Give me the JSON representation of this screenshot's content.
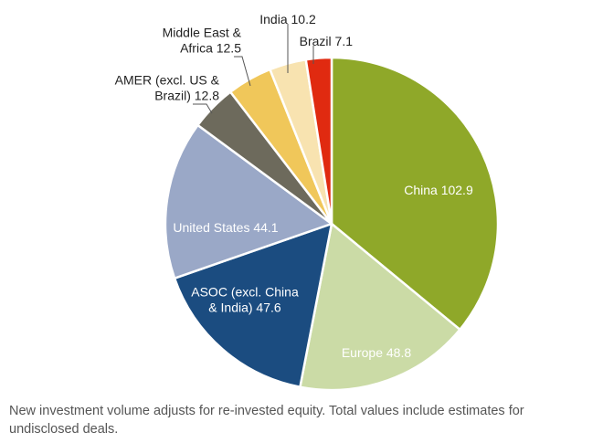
{
  "chart_data": {
    "type": "pie",
    "title": "",
    "units": "",
    "slices": [
      {
        "label": "China",
        "value": 102.9,
        "color": "#8fa829",
        "text_color": "#ffffff",
        "label_lines": [
          "China 102.9"
        ]
      },
      {
        "label": "Europe",
        "value": 48.8,
        "color": "#cbdba6",
        "text_color": "#ffffff",
        "label_lines": [
          "Europe 48.8"
        ]
      },
      {
        "label": "ASOC (excl. China & India)",
        "value": 47.6,
        "color": "#1b4c80",
        "text_color": "#ffffff",
        "label_lines": [
          "ASOC (excl. China",
          "& India) 47.6"
        ]
      },
      {
        "label": "United States",
        "value": 44.1,
        "color": "#9aa8c7",
        "text_color": "#ffffff",
        "label_lines": [
          "United States 44.1"
        ]
      },
      {
        "label": "AMER (excl. US & Brazil)",
        "value": 12.8,
        "color": "#6d6a5c",
        "text_color": "#222222",
        "label_lines": [
          "AMER (excl. US &",
          "Brazil) 12.8"
        ]
      },
      {
        "label": "Middle East & Africa",
        "value": 12.5,
        "color": "#f0c75a",
        "text_color": "#222222",
        "label_lines": [
          "Middle East &",
          "Africa 12.5"
        ]
      },
      {
        "label": "India",
        "value": 10.2,
        "color": "#f8e3b0",
        "text_color": "#222222",
        "label_lines": [
          "India 10.2"
        ]
      },
      {
        "label": "Brazil",
        "value": 7.1,
        "color": "#e02a10",
        "text_color": "#222222",
        "label_lines": [
          "Brazil 7.1"
        ]
      }
    ]
  },
  "caption": "New investment volume adjusts for re-invested equity. Total values include estimates for undisclosed deals."
}
